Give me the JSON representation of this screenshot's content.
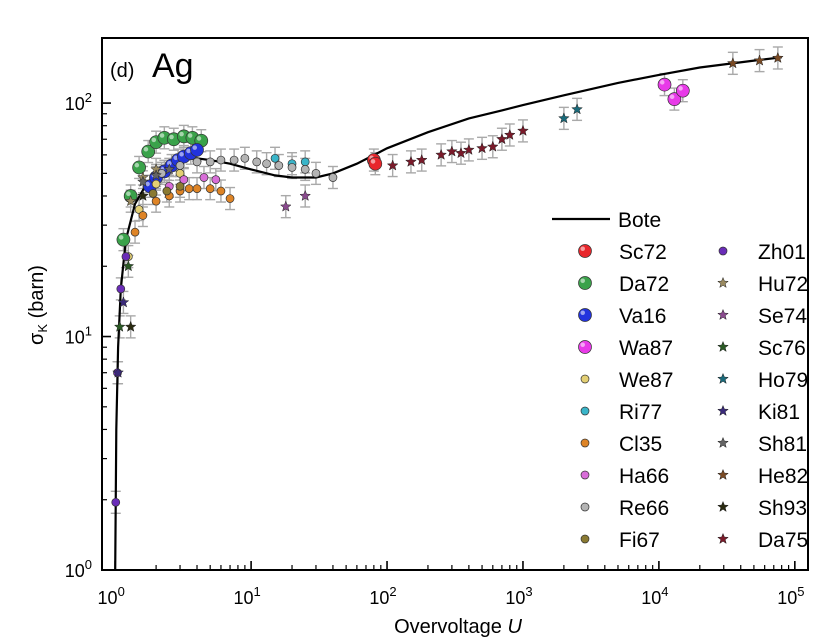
{
  "chart_data": {
    "type": "scatter",
    "panel_label": "(d)",
    "element": "Ag",
    "xlabel": "Overvoltage U",
    "ylabel": "σK (barn)",
    "xscale": "log",
    "yscale": "log",
    "xlim": [
      0.8,
      125000
    ],
    "ylim": [
      1,
      190
    ],
    "x_ticks": [
      {
        "value": 1,
        "base": "10",
        "exp": "0"
      },
      {
        "value": 10,
        "base": "10",
        "exp": "1"
      },
      {
        "value": 100,
        "base": "10",
        "exp": "2"
      },
      {
        "value": 1000,
        "base": "10",
        "exp": "3"
      },
      {
        "value": 10000,
        "base": "10",
        "exp": "4"
      },
      {
        "value": 100000,
        "base": "10",
        "exp": "5"
      }
    ],
    "y_ticks": [
      {
        "value": 1,
        "base": "10",
        "exp": "0"
      },
      {
        "value": 10,
        "base": "10",
        "exp": "1"
      },
      {
        "value": 100,
        "base": "10",
        "exp": "2"
      }
    ],
    "curve": {
      "name": "Bote",
      "color": "#000000",
      "x": [
        1.0,
        1.02,
        1.05,
        1.1,
        1.2,
        1.4,
        1.7,
        2.0,
        2.5,
        3.0,
        4.0,
        5.0,
        7.0,
        10,
        15,
        20,
        30,
        40,
        60,
        100,
        200,
        400,
        700,
        1000,
        2000,
        5000,
        10000,
        20000,
        50000,
        80000
      ],
      "y": [
        1.0,
        4.0,
        9.0,
        16,
        26,
        37,
        45,
        50,
        55,
        57,
        58,
        57,
        55,
        52,
        49,
        48,
        48,
        50,
        55,
        64,
        75,
        86,
        93,
        98,
        108,
        122,
        132,
        142,
        152,
        157
      ]
    },
    "series": [
      {
        "name": "Sc72",
        "marker": "circle",
        "size": "large",
        "color": "#e8262b",
        "x": [
          80,
          82
        ],
        "y": [
          57,
          55
        ]
      },
      {
        "name": "Da72",
        "marker": "circle",
        "size": "large",
        "color": "#3aa24a",
        "x": [
          1.15,
          1.3,
          1.5,
          1.75,
          2.0,
          2.3,
          2.7,
          3.2,
          3.7,
          4.3
        ],
        "y": [
          26,
          40,
          53,
          62,
          68,
          71,
          70,
          72,
          71,
          69
        ]
      },
      {
        "name": "Va16",
        "marker": "circle",
        "size": "large",
        "color": "#2233dd",
        "x": [
          1.8,
          2.0,
          2.3,
          2.6,
          2.9,
          3.2,
          3.6,
          4.0
        ],
        "y": [
          44,
          48,
          51,
          54,
          57,
          59,
          61,
          63
        ]
      },
      {
        "name": "Wa87",
        "marker": "circle",
        "size": "large",
        "color": "#e83ae8",
        "x": [
          11000,
          13000,
          15000
        ],
        "y": [
          120,
          104,
          113
        ]
      },
      {
        "name": "We87",
        "marker": "circle",
        "size": "small",
        "color": "#e3cf74",
        "x": [
          1.25,
          1.5,
          2.0,
          3.0
        ],
        "y": [
          22,
          35,
          45,
          50
        ]
      },
      {
        "name": "Ri77",
        "marker": "circle",
        "size": "small",
        "color": "#3ab5c9",
        "x": [
          15,
          20,
          25
        ],
        "y": [
          58,
          55,
          56
        ]
      },
      {
        "name": "Cl35",
        "marker": "circle",
        "size": "small",
        "color": "#de8426",
        "x": [
          1.4,
          1.6,
          2.0,
          2.5,
          3.0,
          3.5,
          4.0,
          5.0,
          6.0,
          7.0
        ],
        "y": [
          28,
          33,
          38,
          40,
          42,
          43,
          43,
          43,
          42,
          39
        ]
      },
      {
        "name": "Ha66",
        "marker": "circle",
        "size": "small",
        "color": "#d86dd8",
        "x": [
          2.5,
          3.2,
          4.5,
          5.5
        ],
        "y": [
          44,
          47,
          48,
          47
        ]
      },
      {
        "name": "Re66",
        "marker": "circle",
        "size": "small",
        "color": "#b4b4b4",
        "x": [
          2.2,
          3.0,
          4.0,
          5.0,
          6.0,
          7.5,
          9.0,
          11,
          13,
          16,
          20,
          25,
          30,
          40
        ],
        "y": [
          50,
          54,
          56,
          56,
          57,
          57,
          58,
          56,
          55,
          54,
          53,
          52,
          50,
          48
        ]
      },
      {
        "name": "Fi67",
        "marker": "circle",
        "size": "small",
        "color": "#8a7a32",
        "x": [
          1.9,
          2.4,
          3.0
        ],
        "y": [
          41,
          42,
          44
        ]
      },
      {
        "name": "Zh01",
        "marker": "circle",
        "size": "small",
        "color": "#6a2cb8",
        "x": [
          1.01,
          1.04,
          1.1,
          1.2
        ],
        "y": [
          1.95,
          7.0,
          16,
          22
        ]
      },
      {
        "name": "Hu72",
        "marker": "star",
        "color": "#9a8a60",
        "x": [
          1.3,
          1.6,
          2.0
        ],
        "y": [
          38,
          48,
          52
        ]
      },
      {
        "name": "Se74",
        "marker": "star",
        "color": "#8a4a8e",
        "x": [
          18,
          25
        ],
        "y": [
          36,
          40
        ]
      },
      {
        "name": "Sc76",
        "marker": "star",
        "color": "#2a5a24",
        "x": [
          1.08,
          1.25
        ],
        "y": [
          11,
          20
        ]
      },
      {
        "name": "Ho79",
        "marker": "star",
        "color": "#1a6a7a",
        "x": [
          2000,
          2500
        ],
        "y": [
          86,
          94
        ]
      },
      {
        "name": "Ki81",
        "marker": "star",
        "color": "#3a2a7a",
        "x": [
          1.05,
          1.15
        ],
        "y": [
          7,
          14
        ]
      },
      {
        "name": "Sh81",
        "marker": "star",
        "color": "#646464",
        "x": [
          1.6,
          2.0,
          2.5
        ],
        "y": [
          46,
          49,
          52
        ]
      },
      {
        "name": "He82",
        "marker": "star",
        "color": "#7a4a24",
        "x": [
          35000,
          55000,
          75000
        ],
        "y": [
          148,
          152,
          156
        ]
      },
      {
        "name": "Sh93",
        "marker": "star",
        "color": "#2a2a10",
        "x": [
          1.3,
          1.6
        ],
        "y": [
          11,
          40
        ]
      },
      {
        "name": "Da75",
        "marker": "star",
        "color": "#7a1a2a",
        "x": [
          110,
          150,
          180,
          250,
          300,
          350,
          400,
          500,
          600,
          700,
          800,
          1000
        ],
        "y": [
          54,
          56,
          57,
          60,
          62,
          61,
          63,
          64,
          65,
          70,
          73,
          76
        ]
      }
    ],
    "legend": {
      "placement": "center-right",
      "columns": 2,
      "column_1": [
        "Sc72",
        "Da72",
        "Va16",
        "Wa87",
        "We87",
        "Ri77",
        "Cl35",
        "Ha66",
        "Re66",
        "Fi67"
      ],
      "column_2": [
        "Zh01",
        "Hu72",
        "Se74",
        "Sc76",
        "Ho79",
        "Ki81",
        "Sh81",
        "He82",
        "Sh93",
        "Da75"
      ]
    }
  }
}
